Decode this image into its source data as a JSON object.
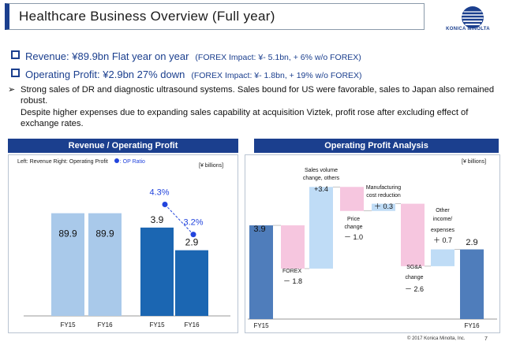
{
  "header": {
    "title": "Healthcare Business Overview (Full year)",
    "logo_text": "KONICA MINOLTA"
  },
  "summary": {
    "revenue_main": "Revenue: ¥89.9bn  Flat year on year",
    "revenue_sub": "(FOREX Impact: ¥- 5.1bn, + 6% w/o FOREX)",
    "op_main": "Operating Profit: ¥2.9bn  27% down",
    "op_sub": "(FOREX Impact: ¥- 1.8bn, + 19% w/o FOREX)",
    "description_1": "Strong sales of DR and diagnostic ultrasound systems. Sales bound for US were favorable, sales to Japan also remained robust.",
    "description_2": "Despite higher expenses due to expanding sales capability at acquisition Viztek, profit rose after excluding effect of exchange rates."
  },
  "left_panel": {
    "heading": "Revenue / Operating Profit",
    "legend_text": "Left: Revenue  Right: Operating Profit",
    "legend_ratio": ": OP Ratio",
    "unit": "[¥ billions]"
  },
  "right_panel": {
    "heading": "Operating Profit Analysis",
    "unit": "[¥ billions]"
  },
  "chart_data": [
    {
      "type": "bar",
      "categories": [
        "FY15",
        "FY16"
      ],
      "series": [
        {
          "name": "Revenue",
          "values": [
            89.9,
            89.9
          ],
          "labels": [
            "89.9",
            "89.9"
          ],
          "color": "#a9c9ea"
        },
        {
          "name": "Operating Profit",
          "values": [
            3.9,
            2.9
          ],
          "labels": [
            "3.9",
            "2.9"
          ],
          "color": "#1b66b2"
        }
      ],
      "op_ratio": {
        "name": "OP Ratio",
        "values": [
          4.3,
          3.2
        ],
        "labels": [
          "4.3%",
          "3.2%"
        ],
        "color": "#2244dd"
      }
    },
    {
      "type": "bar",
      "subtype": "waterfall",
      "steps": [
        {
          "label": "FY15",
          "value": 3.9,
          "value_label": "3.9",
          "kind": "total",
          "color": "#4f7dbb"
        },
        {
          "label": "FOREX",
          "value": -1.8,
          "value_label": "－ 1.8",
          "kind": "delta",
          "color": "#f6c6df"
        },
        {
          "label": "Sales volume change, others",
          "value": 3.4,
          "value_label": "+3.4",
          "kind": "delta",
          "color": "#bfdcf6"
        },
        {
          "label": "Price change",
          "value": -1.0,
          "value_label": "－ 1.0",
          "kind": "delta",
          "color": "#f6c6df"
        },
        {
          "label": "Manufacturing cost reduction",
          "value": 0.3,
          "value_label": "＋ 0.3",
          "kind": "delta",
          "color": "#bfdcf6"
        },
        {
          "label": "SG&A change",
          "value": -2.6,
          "value_label": "－ 2.6",
          "kind": "delta",
          "color": "#f6c6df"
        },
        {
          "label": "Other income/ expenses",
          "value": 0.7,
          "value_label": "＋ 0.7",
          "kind": "delta",
          "color": "#bfdcf6"
        },
        {
          "label": "FY16",
          "value": 2.9,
          "value_label": "2.9",
          "kind": "total",
          "color": "#4f7dbb"
        }
      ]
    }
  ],
  "footer": {
    "copyright": "© 2017 Konica Minolta, Inc.",
    "page_number": "7"
  }
}
